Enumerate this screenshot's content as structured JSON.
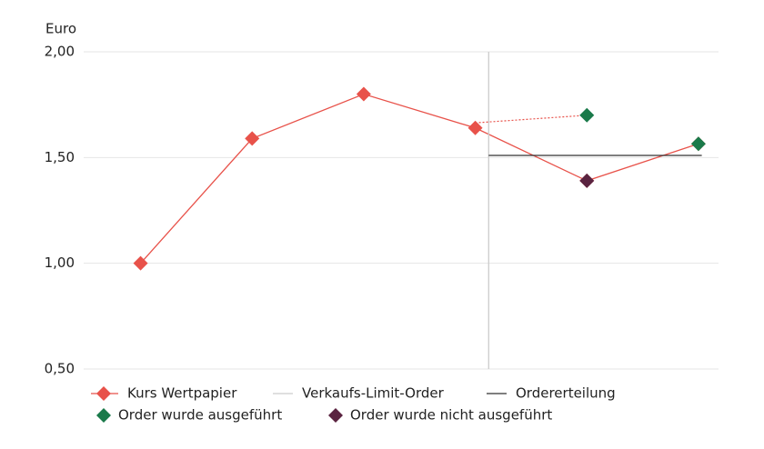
{
  "chart_data": {
    "type": "line",
    "y_label": "Euro",
    "xlim": [
      0.49,
      6.18
    ],
    "ylim": [
      0.5,
      2.0
    ],
    "yticks": [
      {
        "value": 0.5,
        "label": "0,50"
      },
      {
        "value": 1.0,
        "label": "1,00"
      },
      {
        "value": 1.5,
        "label": "1,50"
      },
      {
        "value": 2.0,
        "label": "2,00"
      }
    ],
    "grid": true,
    "series": [
      {
        "name": "Kurs Wertpapier",
        "color": "#e8524a",
        "marker": "diamond",
        "line": "solid",
        "x": [
          1,
          2,
          3,
          4,
          5,
          6
        ],
        "values": [
          1.0,
          1.59,
          1.8,
          1.64,
          1.39,
          1.565
        ]
      },
      {
        "name": "Verkaufs-Limit-Order",
        "color": "#cccccc",
        "line": "solid",
        "x": [
          4.12,
          4.12
        ],
        "values": [
          0.5,
          2.0
        ]
      },
      {
        "name": "Ordererteilung",
        "color": "#333333",
        "line": "solid",
        "x": [
          4.12,
          6.03
        ],
        "values": [
          1.51,
          1.51
        ]
      },
      {
        "name": "Order wurde ausgeführt",
        "color": "#1a7a4a",
        "marker": "diamond",
        "x": [
          5,
          6
        ],
        "values": [
          1.7,
          1.565
        ]
      },
      {
        "name": "Order wurde nicht ausgeführt",
        "color": "#5a2340",
        "marker": "diamond",
        "x": [
          5
        ],
        "values": [
          1.39
        ]
      },
      {
        "color": "#e8524a",
        "line": "dotted",
        "x": [
          4,
          5
        ],
        "values": [
          1.664,
          1.7
        ]
      }
    ]
  }
}
